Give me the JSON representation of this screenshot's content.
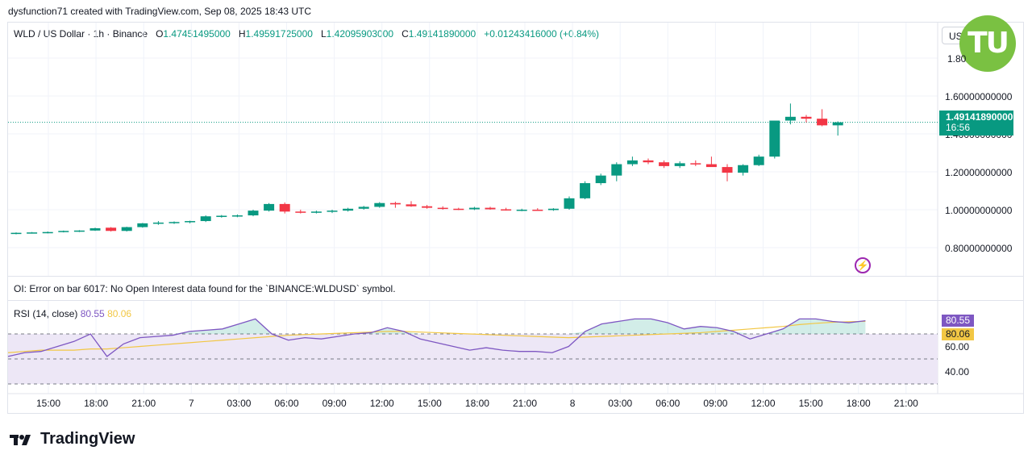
{
  "header": {
    "text": "dysfunction71 created with TradingView.com, Sep 08, 2025 18:43 UTC"
  },
  "legend": {
    "symbol": "WLD / US Dollar · 1h · Binance",
    "open_label": "O",
    "open": "1.47451495000",
    "high_label": "H",
    "high": "1.49591725000",
    "low_label": "L",
    "low": "1.42095903000",
    "close_label": "C",
    "close": "1.49141890000",
    "change": "+0.01243416000 (+0.84%)"
  },
  "currency_button": {
    "label": "USD"
  },
  "logo_badge": {
    "text": "TU"
  },
  "price_axis": {
    "labels": [
      "1.80",
      "1.60000000000",
      "1.40000000000",
      "1.20000000000",
      "1.00000000000",
      "0.80000000000"
    ],
    "current_price": "1.49141890000",
    "countdown": "16:56"
  },
  "oi_error": "OI: Error on bar 6017: No Open Interest data found for the `BINANCE:WLDUSD` symbol.",
  "rsi": {
    "label": "RSI (14, close)",
    "value": "80.55",
    "ma_value": "80.06",
    "axis_labels": [
      "60.00",
      "40.00"
    ],
    "line_color": "#7e57c2",
    "ma_color": "#f2c744"
  },
  "time_axis": {
    "labels": [
      "15:00",
      "18:00",
      "21:00",
      "7",
      "03:00",
      "06:00",
      "09:00",
      "12:00",
      "15:00",
      "18:00",
      "21:00",
      "8",
      "03:00",
      "06:00",
      "09:00",
      "12:00",
      "15:00",
      "18:00",
      "21:00"
    ]
  },
  "footer": {
    "brand": "TradingView"
  },
  "colors": {
    "up": "#089981",
    "down": "#f23645",
    "rsi_band": "#ede7f6"
  },
  "chart_data": {
    "type": "candlestick",
    "title": "WLD / US Dollar · 1h · Binance",
    "ylim": [
      0.7,
      1.85
    ],
    "candles": [
      [
        0.905,
        0.91,
        0.9,
        0.908
      ],
      [
        0.908,
        0.912,
        0.904,
        0.91
      ],
      [
        0.91,
        0.915,
        0.905,
        0.912
      ],
      [
        0.912,
        0.92,
        0.91,
        0.918
      ],
      [
        0.918,
        0.922,
        0.912,
        0.92
      ],
      [
        0.92,
        0.935,
        0.918,
        0.932
      ],
      [
        0.935,
        0.938,
        0.915,
        0.918
      ],
      [
        0.918,
        0.94,
        0.915,
        0.938
      ],
      [
        0.938,
        0.96,
        0.935,
        0.958
      ],
      [
        0.958,
        0.97,
        0.95,
        0.962
      ],
      [
        0.962,
        0.968,
        0.955,
        0.965
      ],
      [
        0.965,
        0.972,
        0.958,
        0.97
      ],
      [
        0.97,
        1.0,
        0.965,
        0.995
      ],
      [
        0.995,
        1.002,
        0.988,
        0.998
      ],
      [
        0.998,
        1.005,
        0.99,
        1.0
      ],
      [
        1.0,
        1.03,
        0.995,
        1.025
      ],
      [
        1.025,
        1.065,
        1.02,
        1.06
      ],
      [
        1.06,
        1.068,
        1.01,
        1.02
      ],
      [
        1.02,
        1.03,
        1.01,
        1.015
      ],
      [
        1.015,
        1.025,
        1.01,
        1.02
      ],
      [
        1.02,
        1.03,
        1.012,
        1.025
      ],
      [
        1.025,
        1.04,
        1.02,
        1.035
      ],
      [
        1.035,
        1.05,
        1.03,
        1.045
      ],
      [
        1.045,
        1.07,
        1.04,
        1.065
      ],
      [
        1.065,
        1.072,
        1.04,
        1.058
      ],
      [
        1.058,
        1.075,
        1.045,
        1.048
      ],
      [
        1.048,
        1.055,
        1.035,
        1.04
      ],
      [
        1.04,
        1.048,
        1.03,
        1.035
      ],
      [
        1.035,
        1.04,
        1.028,
        1.032
      ],
      [
        1.032,
        1.045,
        1.028,
        1.04
      ],
      [
        1.04,
        1.045,
        1.03,
        1.032
      ],
      [
        1.032,
        1.04,
        1.025,
        1.028
      ],
      [
        1.028,
        1.035,
        1.022,
        1.03
      ],
      [
        1.03,
        1.038,
        1.025,
        1.028
      ],
      [
        1.028,
        1.038,
        1.024,
        1.035
      ],
      [
        1.035,
        1.1,
        1.03,
        1.09
      ],
      [
        1.09,
        1.18,
        1.085,
        1.17
      ],
      [
        1.17,
        1.22,
        1.16,
        1.21
      ],
      [
        1.21,
        1.28,
        1.18,
        1.27
      ],
      [
        1.27,
        1.31,
        1.26,
        1.29
      ],
      [
        1.29,
        1.3,
        1.27,
        1.28
      ],
      [
        1.28,
        1.29,
        1.25,
        1.26
      ],
      [
        1.26,
        1.285,
        1.25,
        1.275
      ],
      [
        1.275,
        1.29,
        1.26,
        1.27
      ],
      [
        1.27,
        1.31,
        1.26,
        1.255
      ],
      [
        1.255,
        1.27,
        1.18,
        1.225
      ],
      [
        1.225,
        1.27,
        1.21,
        1.265
      ],
      [
        1.265,
        1.32,
        1.26,
        1.31
      ],
      [
        1.31,
        1.5,
        1.3,
        1.5
      ],
      [
        1.5,
        1.59,
        1.48,
        1.52
      ],
      [
        1.52,
        1.53,
        1.49,
        1.51
      ],
      [
        1.51,
        1.56,
        1.47,
        1.475
      ],
      [
        1.475,
        1.496,
        1.421,
        1.491
      ]
    ],
    "rsi_values": [
      52,
      55,
      56,
      60,
      64,
      70,
      52,
      62,
      67,
      68,
      69,
      72,
      73,
      74,
      78,
      82,
      70,
      65,
      67,
      66,
      68,
      70,
      71,
      75,
      72,
      66,
      63,
      60,
      57,
      59,
      57,
      56,
      56,
      55,
      60,
      72,
      78,
      80,
      82,
      82,
      79,
      74,
      76,
      75,
      72,
      66,
      70,
      74,
      82,
      82,
      80,
      79,
      80.55
    ],
    "rsi_ma_values": [
      55,
      56,
      57,
      57,
      57,
      58,
      58,
      59,
      60,
      61,
      62,
      63,
      64,
      65,
      66,
      67,
      68,
      69,
      69.5,
      70,
      70.5,
      71,
      71.5,
      72,
      72,
      71.5,
      71,
      70.5,
      70,
      69.5,
      69,
      68.5,
      68,
      67.5,
      67,
      67.5,
      68,
      68.5,
      69,
      69.5,
      70,
      70.5,
      71,
      72,
      73,
      74,
      75,
      76,
      77.5,
      78.5,
      79.3,
      79.8,
      80.06
    ],
    "rsi_ylim": [
      22,
      90
    ]
  }
}
